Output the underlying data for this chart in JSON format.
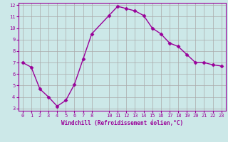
{
  "x": [
    0,
    1,
    2,
    3,
    4,
    5,
    6,
    7,
    8,
    10,
    11,
    12,
    13,
    14,
    15,
    16,
    17,
    18,
    19,
    20,
    21,
    22,
    23
  ],
  "y": [
    7.0,
    6.6,
    4.7,
    4.0,
    3.2,
    3.7,
    5.1,
    7.3,
    9.5,
    11.1,
    11.9,
    11.7,
    11.5,
    11.1,
    10.0,
    9.5,
    8.7,
    8.4,
    7.7,
    7.0,
    7.0,
    6.8,
    6.7
  ],
  "line_color": "#990099",
  "marker": "D",
  "marker_size": 2.5,
  "bg_color": "#cce8e8",
  "grid_color": "#aaaaaa",
  "xlabel": "Windchill (Refroidissement éolien,°C)",
  "xlabel_color": "#990099",
  "tick_color": "#990099",
  "ylim": [
    3,
    12
  ],
  "xlim": [
    0,
    23
  ],
  "yticks": [
    3,
    4,
    5,
    6,
    7,
    8,
    9,
    10,
    11,
    12
  ],
  "xticks": [
    0,
    1,
    2,
    3,
    4,
    5,
    6,
    7,
    8,
    10,
    11,
    12,
    13,
    14,
    15,
    16,
    17,
    18,
    19,
    20,
    21,
    22,
    23
  ],
  "spine_color": "#990099",
  "linewidth": 1.0
}
